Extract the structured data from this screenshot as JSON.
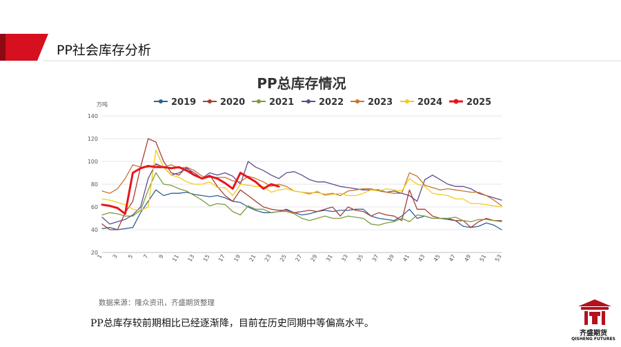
{
  "slide": {
    "title": "PP社会库存分析",
    "source": "数据来源：隆众资讯，齐盛期货整理",
    "conclusion": "PP总库存较前期相比已经逐渐降，目前在历史同期中等偏高水平。",
    "logo_text": "齐盛期货",
    "logo_subtext": "QISHENG FUTURES",
    "accent_color": "#d6101e"
  },
  "chart_data": {
    "type": "line",
    "title": "PP总库存情况",
    "ylabel": "万吨",
    "xlabel": "",
    "ylim": [
      20,
      140
    ],
    "yticks": [
      20,
      40,
      60,
      80,
      100,
      120,
      140
    ],
    "xlim": [
      1,
      53
    ],
    "xticks": [
      1,
      3,
      5,
      7,
      9,
      11,
      13,
      15,
      17,
      19,
      21,
      23,
      25,
      27,
      29,
      31,
      33,
      35,
      37,
      39,
      41,
      43,
      45,
      47,
      49,
      51,
      53
    ],
    "legend_position": "top",
    "grid": "horizontal",
    "series": [
      {
        "name": "2019",
        "color": "#2e5f96",
        "values": [
          41,
          42,
          40,
          41,
          42,
          55,
          65,
          75,
          70,
          72,
          72,
          73,
          71,
          70,
          69,
          70,
          68,
          65,
          64,
          60,
          57,
          55,
          55,
          56,
          58,
          55,
          53,
          54,
          56,
          57,
          56,
          57,
          57,
          58,
          58,
          52,
          50,
          49,
          48,
          52,
          58,
          50,
          52,
          50,
          50,
          49,
          48,
          43,
          42,
          43,
          46,
          44,
          40
        ]
      },
      {
        "name": "2020",
        "color": "#a83c32",
        "values": [
          45,
          40,
          40,
          55,
          65,
          95,
          120,
          117,
          100,
          90,
          88,
          95,
          88,
          85,
          88,
          78,
          70,
          65,
          75,
          70,
          65,
          60,
          58,
          57,
          57,
          55,
          56,
          57,
          56,
          58,
          60,
          52,
          60,
          57,
          56,
          52,
          55,
          53,
          52,
          48,
          75,
          58,
          58,
          52,
          50,
          50,
          48,
          48,
          42,
          47,
          50,
          48,
          48
        ]
      },
      {
        "name": "2021",
        "color": "#7c9b3b",
        "values": [
          53,
          55,
          54,
          52,
          52,
          57,
          75,
          90,
          80,
          79,
          76,
          74,
          70,
          66,
          61,
          63,
          62,
          56,
          53,
          61,
          58,
          58,
          55,
          56,
          56,
          54,
          50,
          48,
          50,
          52,
          50,
          50,
          52,
          51,
          50,
          45,
          44,
          46,
          47,
          50,
          47,
          53,
          52,
          50,
          50,
          50,
          51,
          48,
          47,
          49,
          49,
          48,
          47
        ]
      },
      {
        "name": "2022",
        "color": "#5f4a8b",
        "values": [
          51,
          45,
          47,
          49,
          53,
          60,
          85,
          98,
          95,
          88,
          90,
          94,
          90,
          85,
          90,
          88,
          90,
          87,
          80,
          100,
          95,
          92,
          88,
          85,
          90,
          91,
          88,
          84,
          82,
          82,
          80,
          78,
          77,
          76,
          75,
          75,
          75,
          73,
          74,
          72,
          70,
          65,
          84,
          88,
          84,
          80,
          78,
          78,
          76,
          72,
          70,
          68,
          66
        ]
      },
      {
        "name": "2023",
        "color": "#c7742f",
        "values": [
          74,
          72,
          76,
          85,
          97,
          95,
          95,
          97,
          95,
          97,
          94,
          95,
          92,
          87,
          86,
          86,
          86,
          83,
          82,
          87,
          85,
          82,
          78,
          80,
          78,
          74,
          73,
          72,
          73,
          71,
          72,
          70,
          74,
          75,
          76,
          76,
          74,
          73,
          72,
          72,
          90,
          87,
          79,
          77,
          75,
          76,
          75,
          74,
          73,
          73,
          70,
          66,
          61
        ]
      },
      {
        "name": "2024",
        "color": "#f2cc17",
        "values": [
          67,
          66,
          64,
          62,
          58,
          57,
          60,
          110,
          95,
          88,
          86,
          82,
          80,
          80,
          82,
          77,
          77,
          70,
          80,
          79,
          78,
          78,
          73,
          75,
          76,
          74,
          73,
          71,
          74,
          70,
          71,
          72,
          70,
          70,
          72,
          75,
          74,
          76,
          75,
          74,
          85,
          80,
          78,
          72,
          71,
          70,
          67,
          67,
          63,
          63,
          62,
          61,
          60
        ]
      },
      {
        "name": "2025",
        "color": "#e8141c",
        "values": [
          62,
          61,
          59,
          54,
          90,
          94,
          96,
          95,
          95,
          94,
          95,
          92,
          88,
          85,
          87,
          85,
          81,
          76,
          90,
          86,
          82,
          76,
          80,
          78
        ]
      }
    ]
  }
}
